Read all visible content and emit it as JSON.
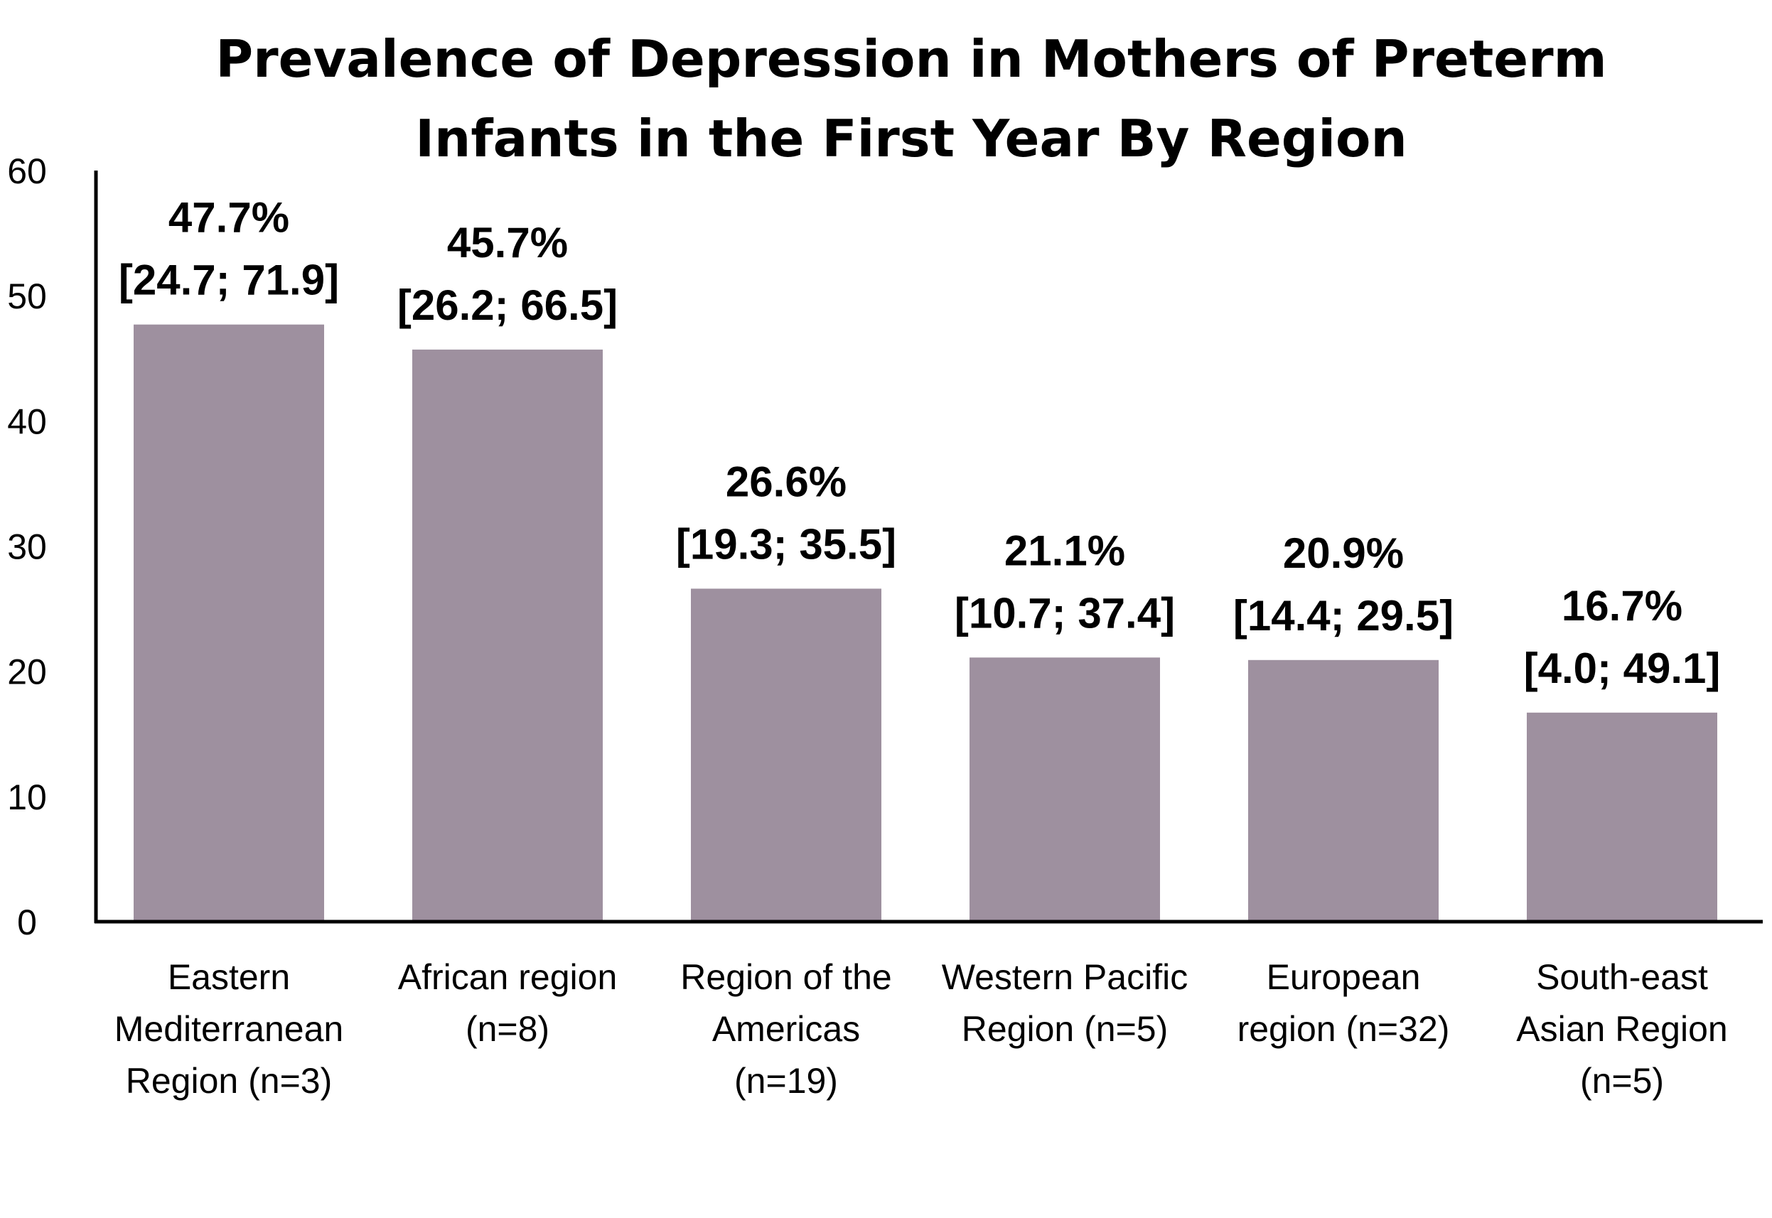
{
  "chart_data": {
    "type": "bar",
    "title_lines": [
      "Prevalence of Depression in Mothers of Preterm",
      "Infants in the First Year By Region"
    ],
    "categories": [
      [
        "Eastern",
        "Mediterranean",
        "Region (n=3)"
      ],
      [
        "African region",
        "(n=8)"
      ],
      [
        "Region of the",
        "Americas",
        "(n=19)"
      ],
      [
        "Western Pacific",
        "Region (n=5)"
      ],
      [
        "European",
        "region (n=32)"
      ],
      [
        "South-east",
        "Asian Region",
        "(n=5)"
      ]
    ],
    "values": [
      47.7,
      45.7,
      26.6,
      21.1,
      20.9,
      16.7
    ],
    "value_labels": [
      "47.7%",
      "45.7%",
      "26.6%",
      "21.1%",
      "20.9%",
      "16.7%"
    ],
    "ci_labels": [
      "[24.7; 71.9]",
      "[26.2; 66.5]",
      "[19.3; 35.5]",
      "[10.7; 37.4]",
      "[14.4; 29.5]",
      "[4.0; 49.1]"
    ],
    "ylim": [
      0,
      60
    ],
    "yticks": [
      0,
      10,
      20,
      30,
      40,
      50,
      60
    ],
    "grid": false,
    "legend": "none",
    "bar_color": "#9e909f",
    "axis_color": "#000000"
  }
}
